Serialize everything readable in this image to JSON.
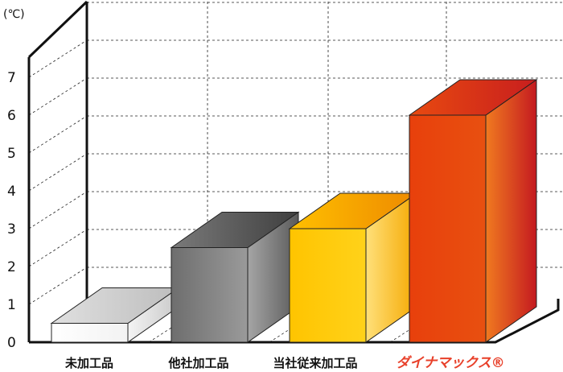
{
  "chart_data": {
    "type": "bar",
    "ylabel": "(℃)",
    "ylim": [
      0,
      7
    ],
    "yticks": [
      0,
      1,
      2,
      3,
      4,
      5,
      6,
      7
    ],
    "categories": [
      "未加工品",
      "他社加工品",
      "当社従来加工品",
      "ダイナマックス®"
    ],
    "values": [
      0.5,
      2.5,
      3.0,
      6.0
    ],
    "grid": true,
    "highlight_category": "ダイナマックス®",
    "colors": {
      "未加工品": [
        "#ffffff",
        "#bdbdbd"
      ],
      "他社加工品": [
        "#8a8a8a",
        "#4a4a4a"
      ],
      "当社従来加工品": [
        "#ffcc00",
        "#f29a00"
      ],
      "ダイナマックス®": [
        "#e84a10",
        "#c81e1e"
      ],
      "highlight_label": "#e8402a"
    }
  }
}
